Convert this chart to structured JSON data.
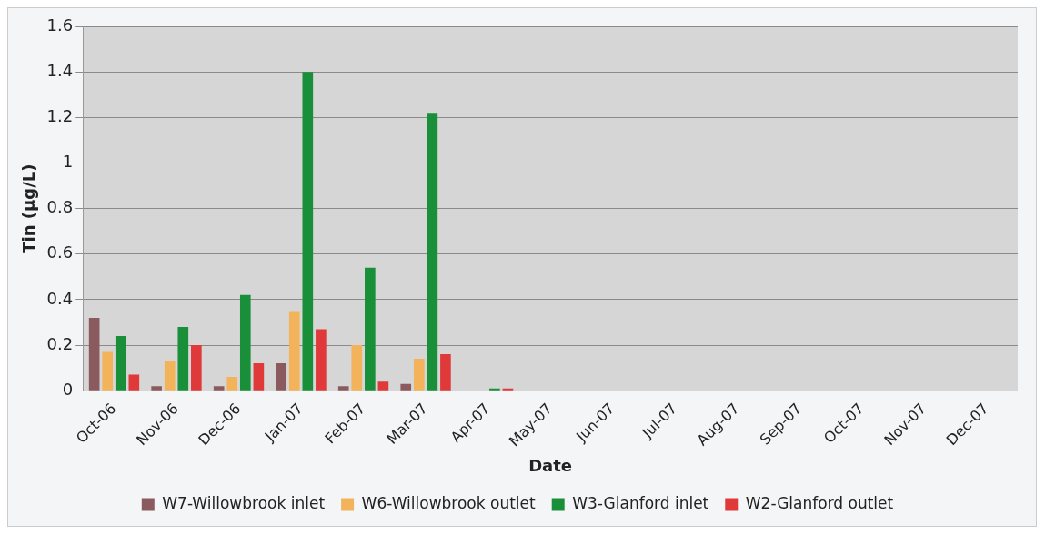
{
  "chart_data": {
    "type": "bar",
    "xlabel": "Date",
    "ylabel": "Tin (µg/L)",
    "categories": [
      "Oct-06",
      "Nov-06",
      "Dec-06",
      "Jan-07",
      "Feb-07",
      "Mar-07",
      "Apr-07",
      "May-07",
      "Jun-07",
      "Jul-07",
      "Aug-07",
      "Sep-07",
      "Oct-07",
      "Nov-07",
      "Dec-07"
    ],
    "series": [
      {
        "name": "W7-Willowbrook inlet",
        "color": "#8b5a5f",
        "values": [
          0.32,
          0.02,
          0.02,
          0.12,
          0.02,
          0.03,
          null,
          null,
          null,
          null,
          null,
          null,
          null,
          null,
          null
        ]
      },
      {
        "name": "W6-Willowbrook outlet",
        "color": "#f2b35a",
        "values": [
          0.17,
          0.13,
          0.06,
          0.35,
          0.2,
          0.14,
          null,
          null,
          null,
          null,
          null,
          null,
          null,
          null,
          null
        ]
      },
      {
        "name": "W3-Glanford inlet",
        "color": "#1a8f3a",
        "values": [
          0.24,
          0.28,
          0.42,
          1.4,
          0.54,
          1.22,
          0.01,
          null,
          null,
          null,
          null,
          null,
          null,
          null,
          null
        ]
      },
      {
        "name": "W2-Glanford outlet",
        "color": "#e0393a",
        "values": [
          0.07,
          0.2,
          0.12,
          0.27,
          0.04,
          0.16,
          0.01,
          null,
          null,
          null,
          null,
          null,
          null,
          null,
          null
        ]
      }
    ],
    "ylim": [
      0,
      1.6
    ],
    "yticks": [
      0,
      0.2,
      0.4,
      0.6,
      0.8,
      1,
      1.2,
      1.4,
      1.6
    ],
    "grid": "y",
    "legend": "bottom"
  }
}
